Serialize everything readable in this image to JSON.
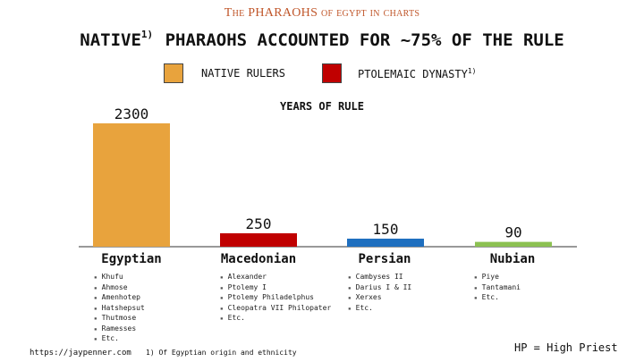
{
  "deck_title": "The PHARAOHS of egypt in charts",
  "headline": {
    "native_word": "NATIVE",
    "native_sup": "1)",
    "rest": " PHARAOHS ACCOUNTED FOR ~75% OF THE RULE"
  },
  "legend": [
    {
      "label": "NATIVE RULERS",
      "sup": "",
      "color": "#E8A33D"
    },
    {
      "label": "PTOLEMAIC DYNASTY",
      "sup": "1)",
      "color": "#C00000"
    }
  ],
  "chart_label": "YEARS OF RULE",
  "chart_data": {
    "type": "bar",
    "categories": [
      "Egyptian",
      "Macedonian",
      "Persian",
      "Nubian"
    ],
    "values": [
      2300,
      250,
      150,
      90
    ],
    "colors": [
      "#E8A33D",
      "#C00000",
      "#1F6FBF",
      "#8CC152"
    ],
    "data_labels": [
      "2300",
      "250",
      "150",
      "90"
    ],
    "ylim": [
      0,
      2300
    ],
    "grid": false,
    "title": "YEARS OF RULE"
  },
  "categories_detail": [
    {
      "name": "Egyptian",
      "rulers": [
        "Khufu",
        "Ahmose",
        "Amenhotep",
        "Hatshepsut",
        "Thutmose",
        "Ramesses",
        "Etc."
      ]
    },
    {
      "name": "Macedonian",
      "rulers": [
        "Alexander",
        "Ptolemy I",
        "Ptolemy Philadelphus",
        "Cleopatra VII Philopater",
        "Etc."
      ]
    },
    {
      "name": "Persian",
      "rulers": [
        "Cambyses II",
        "Darius I & II",
        "Xerxes",
        "Etc."
      ]
    },
    {
      "name": "Nubian",
      "rulers": [
        "Piye",
        "Tantamani",
        "Etc."
      ]
    }
  ],
  "footer": {
    "url": "https://jaypenner.com",
    "footnote": "1) Of Egyptian origin and ethnicity",
    "hp_note": "HP = High Priest"
  }
}
